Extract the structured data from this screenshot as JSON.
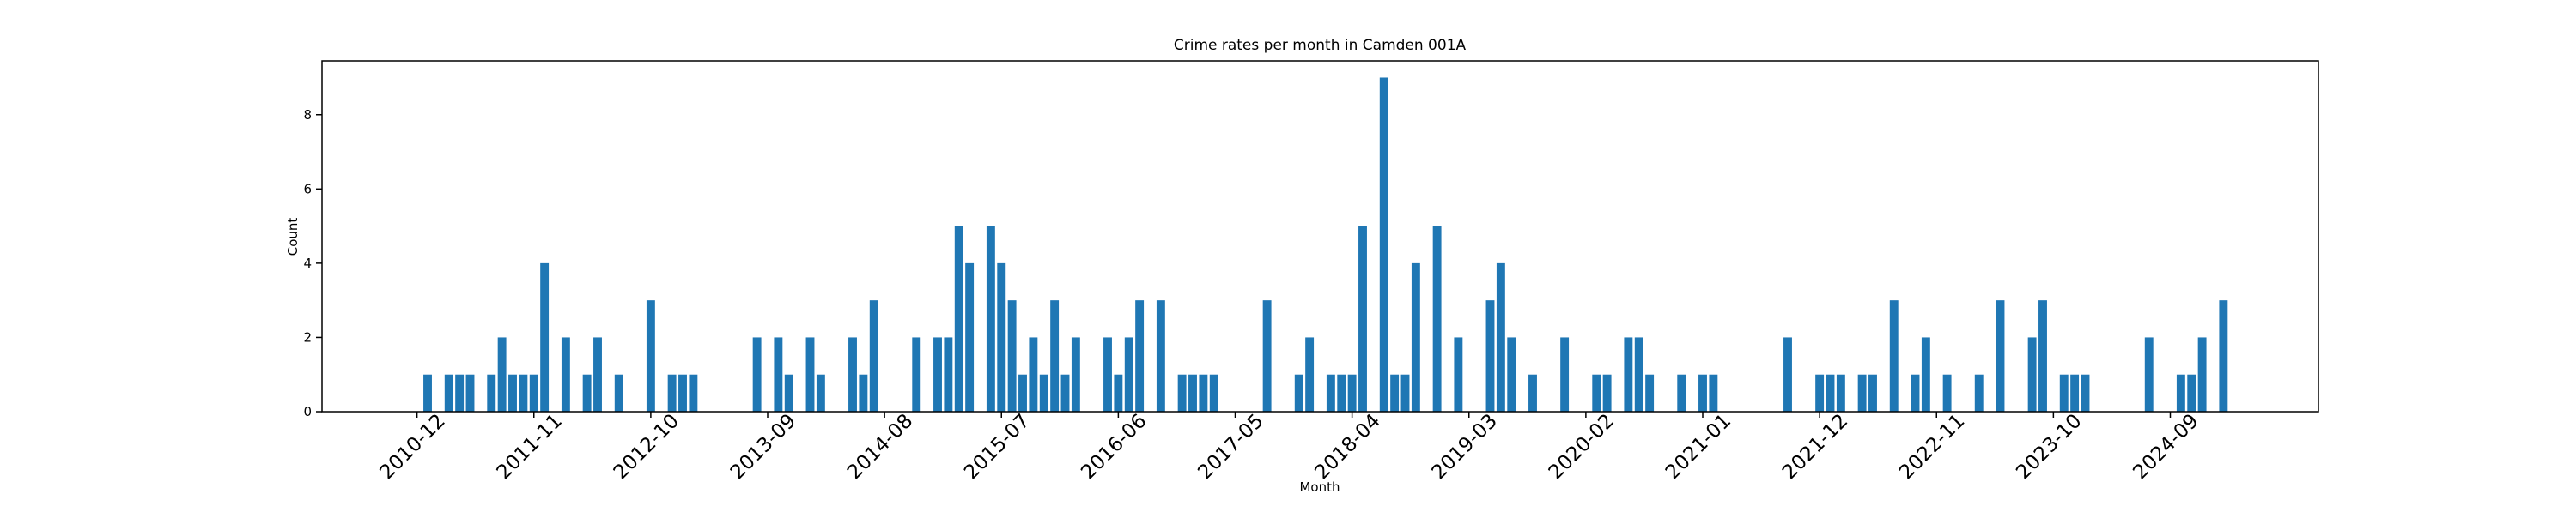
{
  "chart_data": {
    "type": "bar",
    "title": "Crime rates per month in Camden 001A",
    "x_label": "Month",
    "y_label": "Count",
    "color": "#1f77b4",
    "categories": [
      "2010-12",
      null,
      null,
      null,
      null,
      null,
      null,
      null,
      null,
      null,
      null,
      "2011-11",
      null,
      null,
      null,
      null,
      null,
      null,
      null,
      null,
      null,
      null,
      "2012-10",
      null,
      null,
      null,
      null,
      null,
      null,
      null,
      null,
      null,
      null,
      "2013-09",
      null,
      null,
      null,
      null,
      null,
      null,
      null,
      null,
      null,
      null,
      "2014-08",
      null,
      null,
      null,
      null,
      null,
      null,
      null,
      null,
      null,
      null,
      "2015-07",
      null,
      null,
      null,
      null,
      null,
      null,
      null,
      null,
      null,
      null,
      "2016-06",
      null,
      null,
      null,
      null,
      null,
      null,
      null,
      null,
      null,
      null,
      "2017-05",
      null,
      null,
      null,
      null,
      null,
      null,
      null,
      null,
      null,
      null,
      "2018-04",
      null,
      null,
      null,
      null,
      null,
      null,
      null,
      null,
      null,
      null,
      "2019-03",
      null,
      null,
      null,
      null,
      null,
      null,
      null,
      null,
      null,
      null,
      "2020-02",
      null,
      null,
      null,
      null,
      null,
      null,
      null,
      null,
      null,
      null,
      "2021-01",
      null,
      null,
      null,
      null,
      null,
      null,
      null,
      null,
      null,
      null,
      "2021-12",
      null,
      null,
      null,
      null,
      null,
      null,
      null,
      null,
      null,
      null,
      "2022-11",
      null,
      null,
      null,
      null,
      null,
      null,
      null,
      null,
      null,
      null,
      "2023-10",
      null,
      null,
      null,
      null,
      null,
      null,
      null,
      null,
      null,
      null,
      "2024-09",
      null,
      null,
      null,
      null,
      null
    ],
    "values": [
      0,
      1,
      0,
      1,
      1,
      1,
      0,
      1,
      2,
      1,
      1,
      1,
      4,
      0,
      2,
      0,
      1,
      2,
      0,
      1,
      0,
      0,
      3,
      0,
      1,
      1,
      1,
      0,
      0,
      0,
      0,
      0,
      2,
      0,
      2,
      1,
      0,
      2,
      1,
      0,
      0,
      2,
      1,
      3,
      0,
      0,
      0,
      2,
      0,
      2,
      2,
      5,
      4,
      0,
      5,
      4,
      3,
      1,
      2,
      1,
      3,
      1,
      2,
      0,
      0,
      2,
      1,
      2,
      3,
      0,
      3,
      0,
      1,
      1,
      1,
      1,
      0,
      0,
      0,
      0,
      3,
      0,
      0,
      1,
      2,
      0,
      1,
      1,
      1,
      5,
      0,
      9,
      1,
      1,
      4,
      0,
      5,
      0,
      2,
      0,
      0,
      3,
      4,
      2,
      0,
      1,
      0,
      0,
      2,
      0,
      0,
      1,
      1,
      0,
      2,
      2,
      1,
      0,
      0,
      1,
      0,
      1,
      1,
      0,
      0,
      0,
      0,
      0,
      0,
      2,
      0,
      0,
      1,
      1,
      1,
      0,
      1,
      1,
      0,
      3,
      0,
      1,
      2,
      0,
      1,
      0,
      0,
      1,
      0,
      3,
      0,
      0,
      2,
      3,
      0,
      1,
      1,
      1,
      0,
      0,
      0,
      0,
      0,
      2,
      0,
      0,
      1,
      1,
      2,
      0,
      3
    ],
    "ylim": [
      0,
      9.45
    ],
    "yticks": [
      0,
      2,
      4,
      6,
      8
    ]
  }
}
